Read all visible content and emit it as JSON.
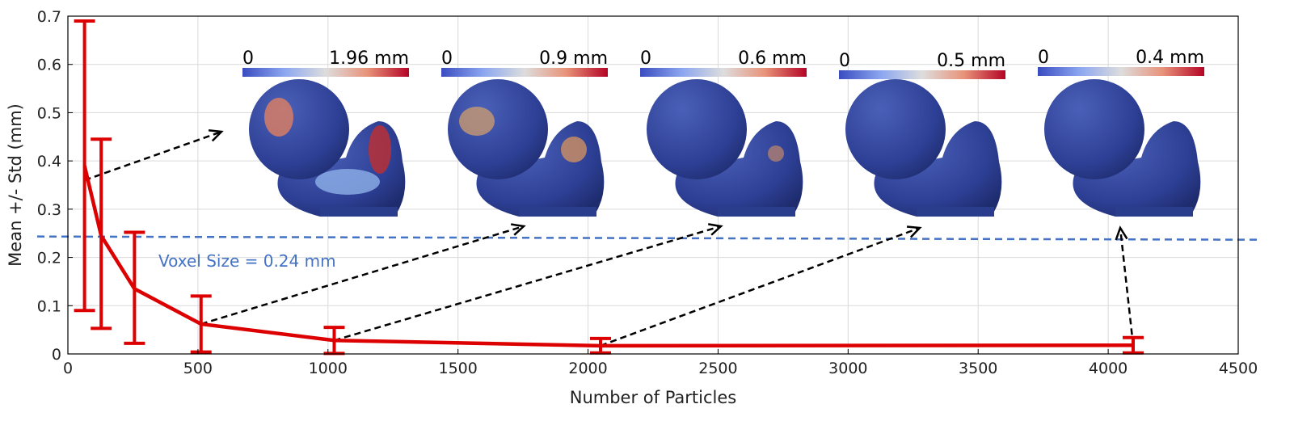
{
  "chart_data": {
    "type": "line",
    "xlabel": "Number of Particles",
    "ylabel": "Mean +/- Std (mm)",
    "xlim": [
      0,
      4500
    ],
    "ylim": [
      0,
      0.7
    ],
    "x_ticks": [
      "0",
      "500",
      "1000",
      "1500",
      "2000",
      "2500",
      "3000",
      "3500",
      "4000",
      "4500"
    ],
    "y_ticks": [
      "0",
      "0.1",
      "0.2",
      "0.3",
      "0.4",
      "0.5",
      "0.6",
      "0.7"
    ],
    "grid": true,
    "series": [
      {
        "color": "#dd0000",
        "x": [
          64,
          128,
          256,
          512,
          1024,
          2048,
          4096
        ],
        "y": [
          0.39,
          0.245,
          0.135,
          0.062,
          0.028,
          0.017,
          0.018
        ],
        "err_low": [
          0.09,
          0.053,
          0.022,
          0.004,
          0.001,
          0.002,
          0.002
        ],
        "err_high": [
          0.69,
          0.445,
          0.252,
          0.12,
          0.055,
          0.032,
          0.034
        ]
      }
    ],
    "reference_line": {
      "y": 0.24,
      "color": "#4472c4",
      "label": "Voxel Size = 0.24 mm"
    },
    "colorbars": [
      {
        "min_label": "0",
        "max_label": "1.96 mm"
      },
      {
        "min_label": "0",
        "max_label": "0.9 mm"
      },
      {
        "min_label": "0",
        "max_label": "0.6 mm"
      },
      {
        "min_label": "0",
        "max_label": "0.5 mm"
      },
      {
        "min_label": "0",
        "max_label": "0.4 mm"
      }
    ],
    "arrows": [
      {
        "from": [
          64,
          0.36
        ]
      },
      {
        "from": [
          512,
          0.062
        ]
      },
      {
        "from": [
          1024,
          0.028
        ]
      },
      {
        "from": [
          2048,
          0.017
        ]
      },
      {
        "from": [
          4096,
          0.018
        ]
      }
    ]
  }
}
